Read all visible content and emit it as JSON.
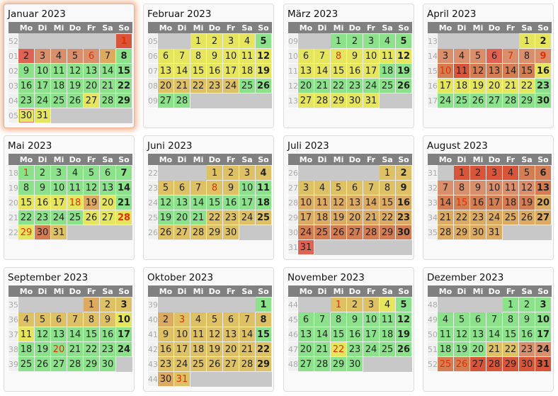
{
  "weekdays": [
    "Mo",
    "Di",
    "Mi",
    "Do",
    "Fr",
    "Sa",
    "So"
  ],
  "palette": {
    "G": "#8ce28a",
    "Y": "#e6e65e",
    "T": "#dec164",
    "A": "#dcaa60",
    "S": "#d98e6c",
    "O": "#d47d52",
    "R": "#e06252",
    "D": "#d9553a"
  },
  "months": [
    {
      "title": "Januar 2023",
      "offset": 6,
      "weeks": [
        "52",
        "01",
        "02",
        "03",
        "04",
        "05"
      ],
      "colors": "DRSSSSAGGGGGGGGGGGGGGGGGGGYGGYY",
      "red": [
        1,
        6
      ],
      "today": 30,
      "selected": true
    },
    {
      "title": "Februar 2023",
      "offset": 2,
      "weeks": [
        "05",
        "06",
        "07",
        "08",
        "09"
      ],
      "colors": "YYYYGYYYYYYYYYYYYYYTTTTTGGGG",
      "red": []
    },
    {
      "title": "März 2023",
      "offset": 2,
      "weeks": [
        "09",
        "10",
        "11",
        "12",
        "13"
      ],
      "colors": "GGGGGYYYYYYYYYYYYGGGGGGGGGYYYYY",
      "red": [
        8
      ]
    },
    {
      "title": "April 2023",
      "offset": 5,
      "weeks": [
        "13",
        "14",
        "15",
        "16",
        "17"
      ],
      "colors": "YYSSSRSSSODOOOOYYYYYYYGGGGGGGG",
      "red": [
        7,
        9,
        10
      ]
    },
    {
      "title": "Mai 2023",
      "offset": 0,
      "weeks": [
        "18",
        "19",
        "20",
        "21",
        "22"
      ],
      "colors": "GGGGGGGGGGGGGGYYYYAYGGGGGYYYYOT",
      "red": [
        1,
        18,
        28,
        29
      ]
    },
    {
      "title": "Juni 2023",
      "offset": 3,
      "weeks": [
        "22",
        "23",
        "24",
        "25",
        "26"
      ],
      "colors": "TTTTTTTTTGGGGGGGGGGGGTTTTTTTTT",
      "red": [
        8
      ]
    },
    {
      "title": "Juli 2023",
      "offset": 5,
      "weeks": [
        "26",
        "27",
        "28",
        "29",
        "30",
        "31"
      ],
      "colors": "TTTTTTTTTAAAAAAAAAAAAAAOOOOOOOR",
      "red": []
    },
    {
      "title": "August 2023",
      "offset": 1,
      "weeks": [
        "31",
        "32",
        "33",
        "34",
        "35"
      ],
      "colors": "DDDDOOSSSSSSOOOOOOOAAAAAAAAAAAA",
      "red": [
        15
      ]
    },
    {
      "title": "September 2023",
      "offset": 4,
      "weeks": [
        "35",
        "36",
        "37",
        "38",
        "39"
      ],
      "colors": "ATTTTTTTTYYGGGGGGGGGGGGGGGGGGG",
      "red": [
        20
      ]
    },
    {
      "title": "Oktober 2023",
      "offset": 6,
      "weeks": [
        "39",
        "40",
        "41",
        "42",
        "43",
        "44"
      ],
      "colors": "GATTTTTTTTTTTTGTTTTTTTTTTTTTTAT",
      "red": [
        3,
        31
      ]
    },
    {
      "title": "November 2023",
      "offset": 2,
      "weeks": [
        "44",
        "45",
        "46",
        "47",
        "48"
      ],
      "colors": "TTTYGGGGGGGGGGGGGGGGGYGGGGGGGG",
      "red": [
        1,
        22
      ]
    },
    {
      "title": "Dezember 2023",
      "offset": 4,
      "weeks": [
        "48",
        "49",
        "50",
        "51",
        "52"
      ],
      "colors": "GGGGGGGGGGGGGGGGGGGGTTSSOODDDDD",
      "red": [
        25,
        26
      ]
    }
  ]
}
